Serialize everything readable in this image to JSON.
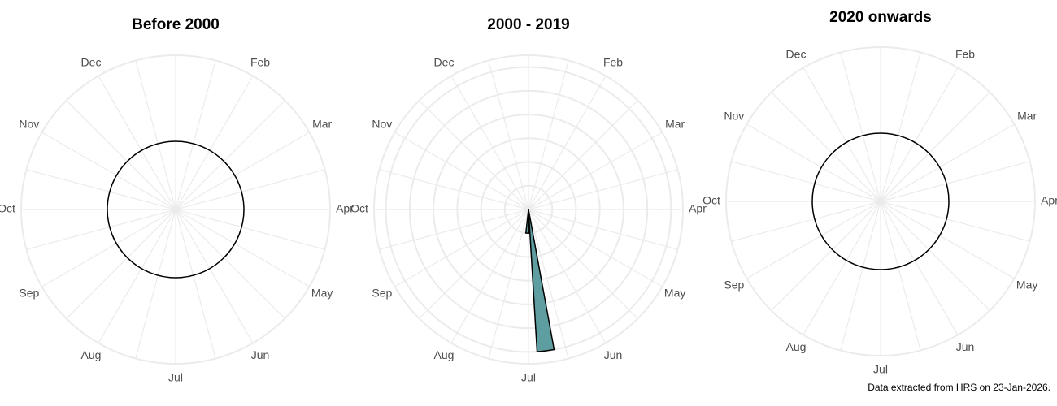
{
  "chart_data": [
    {
      "type": "polar_bar",
      "title": "Before 2000",
      "categories": [
        null,
        "Feb",
        "Mar",
        "Apr",
        "May",
        "Jun",
        "Jul",
        "Aug",
        "Sep",
        "Oct",
        "Nov",
        "Dec"
      ],
      "x": [],
      "values": [],
      "rlim": [
        0,
        6.5
      ],
      "rticks": [],
      "color": "#5f9ea0"
    },
    {
      "type": "polar_bar",
      "title": "2000 - 2019",
      "categories": [
        null,
        "Feb",
        "Mar",
        "Apr",
        "May",
        "Jun",
        "Jul",
        "Aug",
        "Sep",
        "Oct",
        "Nov",
        "Dec"
      ],
      "x": [
        6.77,
        7.1
      ],
      "values": [
        6,
        1
      ],
      "bar_width": 0.23,
      "rlim": [
        0,
        6.5
      ],
      "rticks": [
        1,
        2,
        3,
        4,
        5,
        6
      ],
      "color": "#5f9ea0"
    },
    {
      "type": "polar_bar",
      "title": "2020 onwards",
      "categories": [
        null,
        "Feb",
        "Mar",
        "Apr",
        "May",
        "Jun",
        "Jul",
        "Aug",
        "Sep",
        "Oct",
        "Nov",
        "Dec"
      ],
      "x": [],
      "values": [],
      "rlim": [
        0,
        6.5
      ],
      "rticks": [],
      "color": "#5f9ea0"
    }
  ],
  "footnote": "Data extracted from HRS on 23-Jan-2026."
}
